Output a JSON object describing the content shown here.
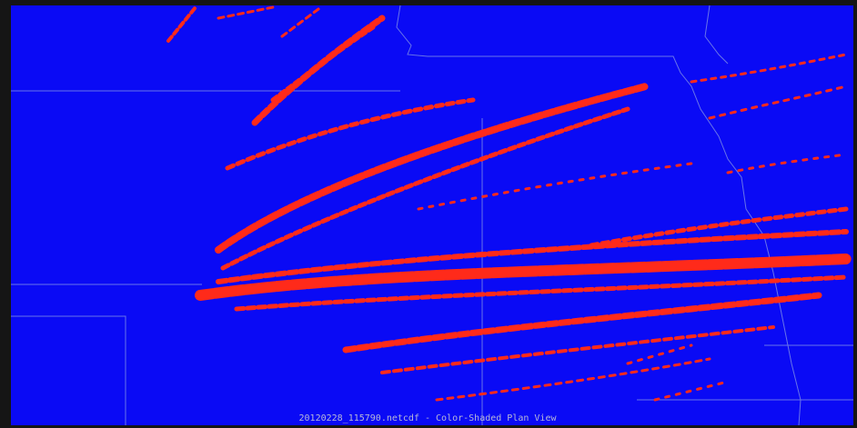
{
  "caption": "20120228_115790.netcdf - Color-Shaded Plan View"
}
